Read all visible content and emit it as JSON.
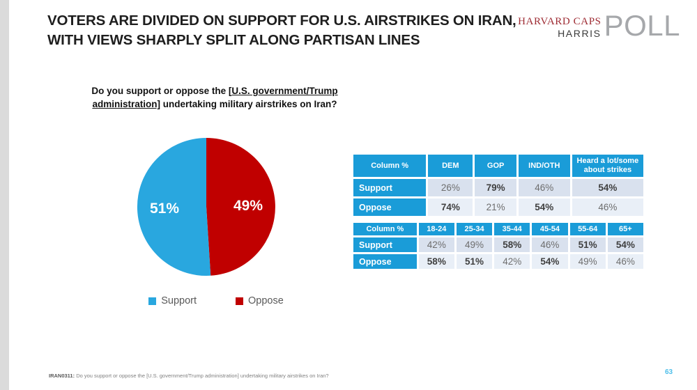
{
  "slide": {
    "title_line1": "VOTERS ARE DIVIDED ON SUPPORT FOR U.S. AIRSTRIKES ON IRAN,",
    "title_line2": "WITH VIEWS SHARPLY SPLIT ALONG PARTISAN LINES",
    "page_number": "63"
  },
  "logo": {
    "line1": "HARVARD CAPS",
    "line2": "HARRIS",
    "word": "POLL"
  },
  "question": {
    "pre": "Do you support or oppose the [",
    "underlined": "U.S. government/Trump administration]",
    "post": " undertaking military airstrikes on Iran?"
  },
  "colors": {
    "support_blue": "#29a7df",
    "oppose_red": "#c00000",
    "table_header_blue": "#1a9cd8",
    "row_dark_bg": "#d9e1ee",
    "row_light_bg": "#e9eff7",
    "harvard_caps_red": "#9e2b33",
    "poll_gray": "#a6a8ab",
    "page_number_blue": "#4fbfea"
  },
  "chart_data": [
    {
      "type": "pie",
      "title": "Do you support or oppose the [U.S. government/Trump administration] undertaking military airstrikes on Iran?",
      "labels": [
        "Support",
        "Oppose"
      ],
      "values": [
        51,
        49
      ],
      "data_labels": [
        "51%",
        "49%"
      ],
      "colors": [
        "#29a7df",
        "#c00000"
      ],
      "legend_position": "bottom"
    },
    {
      "type": "table",
      "name": "by-party-and-awareness",
      "header": [
        "Column %",
        "DEM",
        "GOP",
        "IND/OTH",
        "Heard a lot/some about strikes"
      ],
      "rows": [
        {
          "label": "Support",
          "values": [
            "26%",
            "79%",
            "46%",
            "54%"
          ],
          "bold": [
            false,
            true,
            false,
            true
          ]
        },
        {
          "label": "Oppose",
          "values": [
            "74%",
            "21%",
            "54%",
            "46%"
          ],
          "bold": [
            true,
            false,
            true,
            false
          ]
        }
      ]
    },
    {
      "type": "table",
      "name": "by-age",
      "header": [
        "Column %",
        "18-24",
        "25-34",
        "35-44",
        "45-54",
        "55-64",
        "65+"
      ],
      "rows": [
        {
          "label": "Support",
          "values": [
            "42%",
            "49%",
            "58%",
            "46%",
            "51%",
            "54%"
          ],
          "bold": [
            false,
            false,
            true,
            false,
            true,
            true
          ]
        },
        {
          "label": "Oppose",
          "values": [
            "58%",
            "51%",
            "42%",
            "54%",
            "49%",
            "46%"
          ],
          "bold": [
            true,
            true,
            false,
            true,
            false,
            false
          ]
        }
      ]
    }
  ],
  "footer": {
    "code": "IRAN0311:",
    "text": " Do you support or oppose the [U.S. government/Trump administration] undertaking military airstrikes on Iran?"
  }
}
